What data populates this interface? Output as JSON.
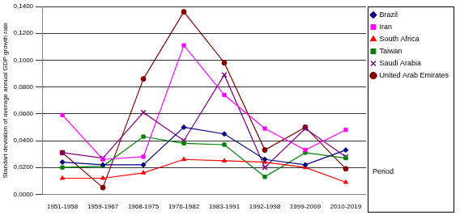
{
  "chart_data": {
    "type": "line",
    "y_label": "Standart deviation of average annual GDP growth rate",
    "annotations": [
      "Period"
    ],
    "categories": [
      "1951-1958",
      "1959-1967",
      "1968-1975",
      "1976-1982",
      "1983-1991",
      "1992-1998",
      "1999-2009",
      "2010-2019"
    ],
    "series": [
      {
        "name": "Brazil",
        "color": "#000080",
        "marker": "diamond",
        "values": [
          0.024,
          0.022,
          0.022,
          0.05,
          0.045,
          0.026,
          0.022,
          0.033
        ]
      },
      {
        "name": "Iran",
        "color": "#ff00ff",
        "marker": "square",
        "values": [
          0.059,
          0.026,
          0.028,
          0.111,
          0.074,
          0.049,
          0.033,
          0.048
        ]
      },
      {
        "name": "South Africa",
        "color": "#ff0000",
        "marker": "triangle",
        "values": [
          0.012,
          0.012,
          0.016,
          0.026,
          0.025,
          0.024,
          0.02,
          0.009
        ]
      },
      {
        "name": "Taiwan",
        "color": "#008000",
        "marker": "square",
        "values": [
          0.02,
          0.021,
          0.043,
          0.038,
          0.037,
          0.013,
          0.031,
          0.027
        ]
      },
      {
        "name": "Saudi Arabia",
        "color": "#800080",
        "marker": "x",
        "values": [
          0.031,
          0.027,
          0.061,
          0.04,
          0.089,
          0.02,
          0.049,
          0.028
        ]
      },
      {
        "name": "United Arab Emirates",
        "color": "#800000",
        "marker": "circle",
        "values": [
          0.031,
          0.005,
          0.086,
          0.136,
          0.098,
          0.033,
          0.05,
          0.019
        ]
      }
    ],
    "ylim": [
      0,
      0.14
    ],
    "yticks": [
      {
        "value": 0,
        "label": "0,0000"
      },
      {
        "value": 0.02,
        "label": "0,0200"
      },
      {
        "value": 0.04,
        "label": "0,0400"
      },
      {
        "value": 0.06,
        "label": "0,0600"
      },
      {
        "value": 0.08,
        "label": "0,0800"
      },
      {
        "value": 0.1,
        "label": "0,1000"
      },
      {
        "value": 0.12,
        "label": "0,1200"
      },
      {
        "value": 0.14,
        "label": "0,1400"
      }
    ],
    "grid": true,
    "legend": "right"
  }
}
